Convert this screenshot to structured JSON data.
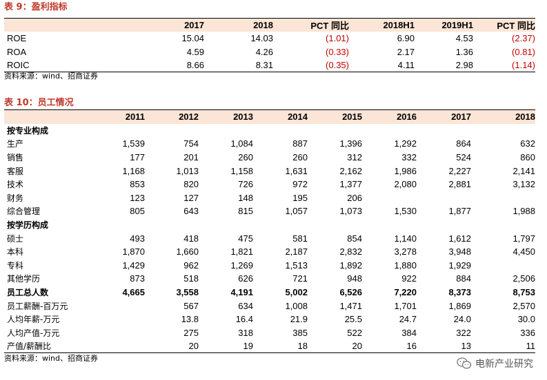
{
  "table9": {
    "title": "表 9：盈利指标",
    "headers": [
      "",
      "2017",
      "2018",
      "PCT 同比",
      "2018H1",
      "2019H1",
      "PCT 同比"
    ],
    "rows": [
      {
        "label": "ROE",
        "values": [
          "15.04",
          "14.03",
          "(1.01)",
          "6.90",
          "4.53",
          "(2.37)"
        ]
      },
      {
        "label": "ROA",
        "values": [
          "4.59",
          "4.26",
          "(0.33)",
          "2.17",
          "1.36",
          "(0.81)"
        ]
      },
      {
        "label": "ROIC",
        "values": [
          "8.66",
          "8.31",
          "(0.35)",
          "4.11",
          "2.98",
          "(1.14)"
        ]
      }
    ],
    "source": "资料来源：wind、招商证券"
  },
  "table10": {
    "title": "表 10：员工情况",
    "headers": [
      "",
      "2011",
      "2012",
      "2013",
      "2014",
      "2015",
      "2016",
      "2017",
      "2018"
    ],
    "rows": [
      {
        "label": "按专业构成",
        "values": [
          "",
          "",
          "",
          "",
          "",
          "",
          "",
          ""
        ],
        "type": "section"
      },
      {
        "label": "生产",
        "values": [
          "1,539",
          "754",
          "1,084",
          "887",
          "1,396",
          "1,292",
          "864",
          "632"
        ]
      },
      {
        "label": "销售",
        "values": [
          "177",
          "201",
          "260",
          "260",
          "312",
          "332",
          "524",
          "860"
        ]
      },
      {
        "label": "客服",
        "values": [
          "1,168",
          "1,013",
          "1,158",
          "1,631",
          "2,162",
          "1,986",
          "2,227",
          "2,141"
        ]
      },
      {
        "label": "技术",
        "values": [
          "853",
          "820",
          "726",
          "972",
          "1,377",
          "2,080",
          "2,881",
          "3,132"
        ]
      },
      {
        "label": "财务",
        "values": [
          "123",
          "127",
          "148",
          "195",
          "206",
          "",
          "",
          ""
        ]
      },
      {
        "label": "综合管理",
        "values": [
          "805",
          "643",
          "815",
          "1,057",
          "1,073",
          "1,530",
          "1,877",
          "1,988"
        ]
      },
      {
        "label": "按学历构成",
        "values": [
          "",
          "",
          "",
          "",
          "",
          "",
          "",
          ""
        ],
        "type": "section"
      },
      {
        "label": "硕士",
        "values": [
          "493",
          "418",
          "475",
          "581",
          "854",
          "1,140",
          "1,612",
          "1,797"
        ]
      },
      {
        "label": "本科",
        "values": [
          "1,870",
          "1,660",
          "1,821",
          "2,187",
          "2,832",
          "3,278",
          "3,948",
          "4,450"
        ]
      },
      {
        "label": "专科",
        "values": [
          "1,429",
          "962",
          "1,269",
          "1,513",
          "1,892",
          "1,880",
          "1,929",
          ""
        ]
      },
      {
        "label": "其他学历",
        "values": [
          "873",
          "518",
          "626",
          "721",
          "948",
          "922",
          "884",
          "2,506"
        ]
      },
      {
        "label": "员工总人数",
        "values": [
          "4,665",
          "3,558",
          "4,191",
          "5,002",
          "6,526",
          "7,220",
          "8,373",
          "8,753"
        ],
        "type": "total"
      },
      {
        "label": "员工薪酬-百万元",
        "values": [
          "",
          "567",
          "634",
          "1,008",
          "1,471",
          "1,701",
          "1,869",
          "2,570"
        ]
      },
      {
        "label": "人均年薪-万元",
        "values": [
          "",
          "13.8",
          "16.4",
          "21.9",
          "25.5",
          "24.7",
          "24.0",
          "30.0"
        ]
      },
      {
        "label": "人均产值-万元",
        "values": [
          "",
          "275",
          "318",
          "385",
          "522",
          "384",
          "322",
          "336"
        ]
      },
      {
        "label": "产值/薪酬比",
        "values": [
          "",
          "20",
          "19",
          "18",
          "20",
          "16",
          "13",
          "11"
        ]
      }
    ],
    "source": "资料来源：wind、招商证券"
  },
  "watermark": "电新产业研究",
  "colors": {
    "title": "#c0392b",
    "header_bg": "#fbe5d6",
    "negative": "#c00000"
  }
}
